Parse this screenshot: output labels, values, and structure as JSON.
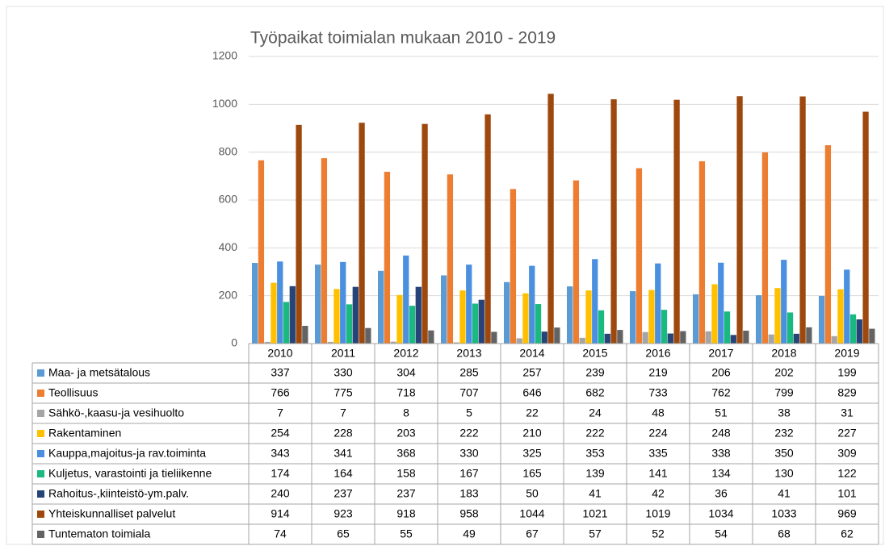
{
  "chart_data": {
    "type": "bar",
    "title": "Työpaikat toimialan mukaan 2010 - 2019",
    "categories": [
      "2010",
      "2011",
      "2012",
      "2013",
      "2014",
      "2015",
      "2016",
      "2017",
      "2018",
      "2019"
    ],
    "ylim": [
      0,
      1200
    ],
    "yticks": [
      0,
      200,
      400,
      600,
      800,
      1000,
      1200
    ],
    "grid": true,
    "series": [
      {
        "name": "Maa- ja metsätalous",
        "color": "#5b9bd5",
        "values": [
          337,
          330,
          304,
          285,
          257,
          239,
          219,
          206,
          202,
          199
        ]
      },
      {
        "name": "Teollisuus",
        "color": "#ed7d31",
        "values": [
          766,
          775,
          718,
          707,
          646,
          682,
          733,
          762,
          799,
          829
        ]
      },
      {
        "name": "Sähkö-,kaasu-ja vesihuolto",
        "color": "#a5a5a5",
        "values": [
          7,
          7,
          8,
          5,
          22,
          24,
          48,
          51,
          38,
          31
        ]
      },
      {
        "name": "Rakentaminen",
        "color": "#ffc000",
        "values": [
          254,
          228,
          203,
          222,
          210,
          222,
          224,
          248,
          232,
          227
        ]
      },
      {
        "name": "Kauppa,majoitus-ja rav.toiminta",
        "color": "#4a8fe0",
        "values": [
          343,
          341,
          368,
          330,
          325,
          353,
          335,
          338,
          350,
          309
        ]
      },
      {
        "name": "Kuljetus, varastointi ja tieliikenne",
        "color": "#1ab97f",
        "values": [
          174,
          164,
          158,
          167,
          165,
          139,
          141,
          134,
          130,
          122
        ]
      },
      {
        "name": "Rahoitus-,kiinteistö-ym.palv.",
        "color": "#264478",
        "values": [
          240,
          237,
          237,
          183,
          50,
          41,
          42,
          36,
          41,
          101
        ]
      },
      {
        "name": "Yhteiskunnalliset palvelut",
        "color": "#9e480e",
        "values": [
          914,
          923,
          918,
          958,
          1044,
          1021,
          1019,
          1034,
          1033,
          969
        ]
      },
      {
        "name": "Tuntematon toimiala",
        "color": "#636363",
        "values": [
          74,
          65,
          55,
          49,
          67,
          57,
          52,
          54,
          68,
          62
        ]
      }
    ]
  }
}
